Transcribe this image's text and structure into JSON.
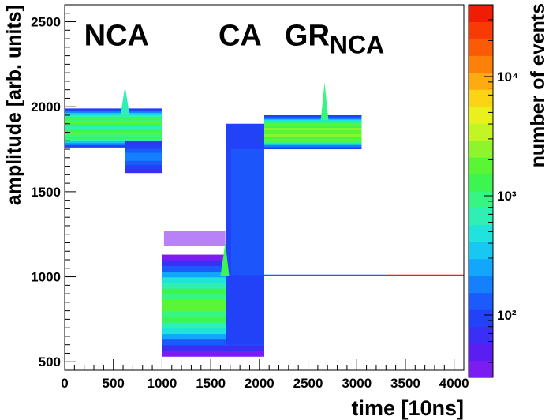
{
  "chart_data": {
    "type": "heatmap",
    "title": "",
    "xlabel": "time [10ns]",
    "ylabel": "amplitude [arb. units]",
    "xlim": [
      0,
      4100
    ],
    "ylim": [
      450,
      2600
    ],
    "x_ticks": [
      0,
      500,
      1000,
      1500,
      2000,
      2500,
      3000,
      3500,
      4000
    ],
    "y_ticks": [
      500,
      1000,
      1500,
      2000,
      2500
    ],
    "colorbar": {
      "label": "number of events",
      "scale": "log",
      "range": [
        30,
        40000
      ],
      "ticks": [
        {
          "value": 100,
          "label": "10²"
        },
        {
          "value": 1000,
          "label": "10³"
        },
        {
          "value": 10000,
          "label": "10⁴"
        }
      ],
      "palette": [
        "#7b1cf0",
        "#5a1ef2",
        "#3a2ff5",
        "#2242f8",
        "#1b5bfb",
        "#1480fd",
        "#12a6fc",
        "#16c8f2",
        "#1fe3dc",
        "#2ef0b5",
        "#36f582",
        "#3cf550",
        "#5af535",
        "#8ef52c",
        "#c3f524",
        "#e9f01c",
        "#fbd416",
        "#fdab10",
        "#fd800b",
        "#fb5a07",
        "#f83a05",
        "#f01c04"
      ]
    },
    "annotations": [
      {
        "text": "NCA",
        "sub": "",
        "x": 200,
        "y": 2360
      },
      {
        "text": "CA",
        "sub": "",
        "x": 1580,
        "y": 2360
      },
      {
        "text": "GR",
        "sub": "NCA",
        "x": 2260,
        "y": 2360
      }
    ],
    "regions": [
      {
        "name": "NCA",
        "x": [
          0,
          1000
        ],
        "baseline": 1890,
        "band_low": 1760,
        "band_high": 1990,
        "step_at": 620,
        "after_low": 1610,
        "peak": 2120
      },
      {
        "name": "CA",
        "x": [
          1000,
          2050
        ],
        "baseline": 930,
        "band_low": 530,
        "band_high": 1270,
        "step_at": 1630,
        "step_high": 1900,
        "peak": 1010
      },
      {
        "name": "GR_NCA",
        "x": [
          2050,
          3050
        ],
        "baseline": 1880,
        "band_low": 1750,
        "band_high": 1950,
        "step_at": 2670,
        "peak": 2140
      }
    ],
    "trace": {
      "x": [
        2050,
        4100
      ],
      "y": 1010
    },
    "grid": false,
    "legend": "none"
  }
}
